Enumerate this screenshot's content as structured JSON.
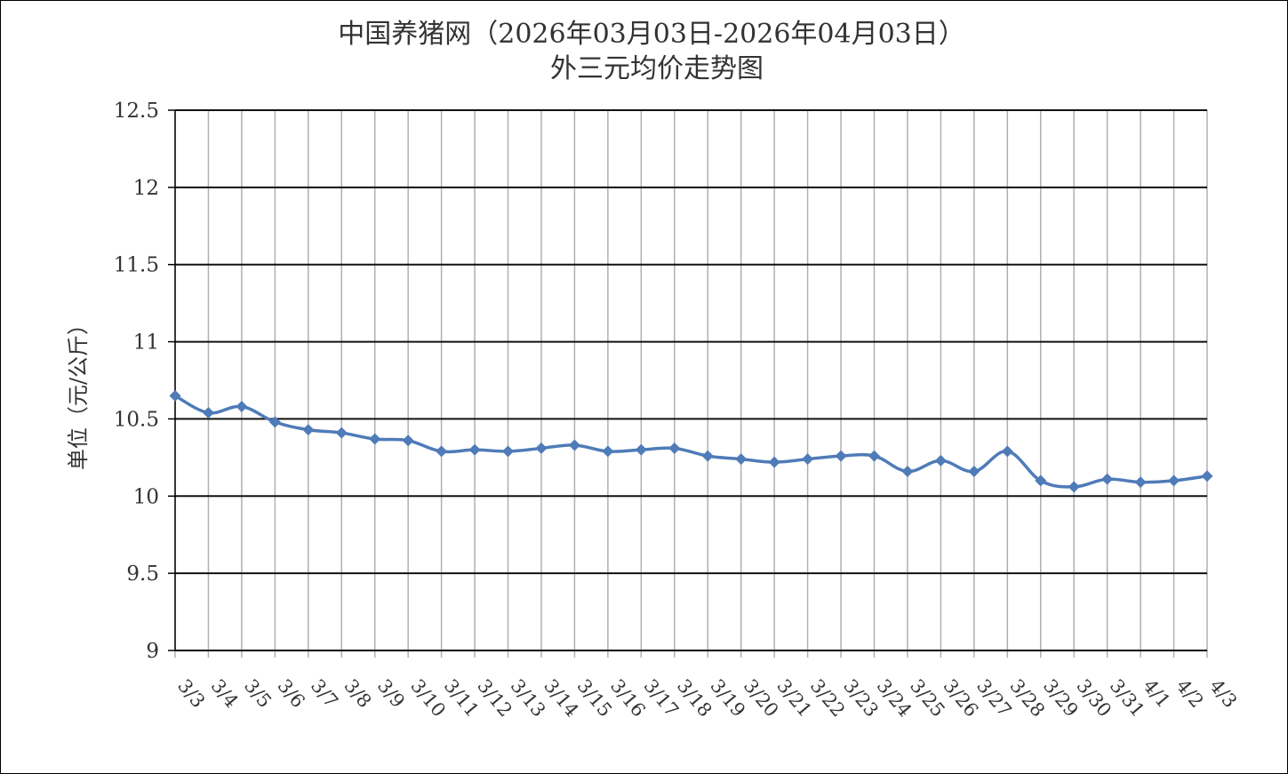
{
  "chart_data": {
    "type": "line",
    "title": "中国养猪网（2026年03月03日-2026年04月03日）",
    "subtitle": "外三元均价走势图",
    "xlabel": "",
    "ylabel": "单位（元/公斤）",
    "ylim": [
      9,
      12.5
    ],
    "yticks": [
      "9",
      "9.5",
      "10",
      "10.5",
      "11",
      "11.5",
      "12",
      "12.5"
    ],
    "grid": true,
    "legend": "none",
    "line_color": "#4f7bb8",
    "categories": [
      "3/3",
      "3/4",
      "3/5",
      "3/6",
      "3/7",
      "3/8",
      "3/9",
      "3/10",
      "3/11",
      "3/12",
      "3/13",
      "3/14",
      "3/15",
      "3/16",
      "3/17",
      "3/18",
      "3/19",
      "3/20",
      "3/21",
      "3/22",
      "3/23",
      "3/24",
      "3/25",
      "3/26",
      "3/27",
      "3/28",
      "3/29",
      "3/30",
      "3/31",
      "4/1",
      "4/2",
      "4/3"
    ],
    "series": [
      {
        "values": [
          10.65,
          10.54,
          10.58,
          10.48,
          10.43,
          10.41,
          10.37,
          10.36,
          10.29,
          10.3,
          10.29,
          10.31,
          10.33,
          10.29,
          10.3,
          10.31,
          10.26,
          10.24,
          10.22,
          10.24,
          10.26,
          10.26,
          10.16,
          10.23,
          10.16,
          10.29,
          10.1,
          10.06,
          10.11,
          10.09,
          10.1,
          10.13
        ]
      }
    ]
  }
}
